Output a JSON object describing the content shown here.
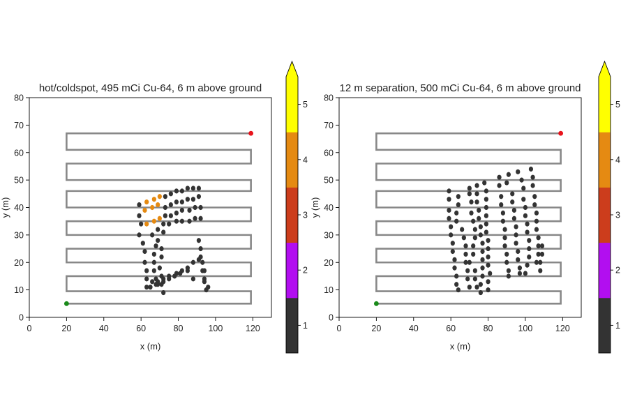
{
  "chart_data": [
    {
      "type": "scatter",
      "title": "hot/coldspot, 495 mCi Cu-64, 6 m above ground",
      "xlabel": "x (m)",
      "ylabel": "y (m)",
      "xlim": [
        0,
        130
      ],
      "ylim": [
        0,
        80
      ],
      "xticks": [
        "0",
        "20",
        "40",
        "60",
        "80",
        "100",
        "120"
      ],
      "yticks": [
        "0",
        "10",
        "20",
        "30",
        "40",
        "50",
        "60",
        "70",
        "80"
      ],
      "path": {
        "x_left": 20,
        "x_right": 119,
        "y_levels": [
          5,
          9.5,
          15,
          20,
          25,
          30,
          35,
          40,
          46,
          50,
          56,
          61,
          67
        ],
        "start": [
          20,
          5
        ],
        "end": [
          119,
          67
        ],
        "start_color": "#1a8a1a",
        "end_color": "#e8141c",
        "color": "#888888"
      },
      "point_groups": [
        {
          "level": 4,
          "color": "#e58a12",
          "x": [
            63,
            67,
            70,
            62,
            66,
            69,
            63,
            67,
            70
          ],
          "y": [
            42,
            43,
            44,
            39,
            40,
            41,
            34,
            35,
            36
          ]
        },
        {
          "level": 1,
          "color": "#333333",
          "x": [
            73,
            76,
            79,
            82,
            85,
            88,
            91,
            73,
            76,
            79,
            82,
            85,
            88,
            91,
            73,
            76,
            79,
            82,
            86,
            89,
            92,
            72,
            75,
            79,
            82,
            86,
            89,
            92,
            59,
            59,
            60,
            59,
            61,
            62,
            62,
            63,
            63,
            63,
            66,
            68,
            67,
            67,
            67,
            68,
            68,
            69,
            69,
            71,
            71,
            70,
            71,
            71,
            72,
            72,
            91,
            92,
            92,
            93,
            93,
            94,
            94,
            96,
            95,
            66,
            69,
            72,
            75,
            79,
            82,
            85,
            88,
            91,
            94,
            65,
            69,
            72,
            75,
            78,
            81,
            85,
            88
          ],
          "y": [
            44,
            45,
            46,
            46,
            47,
            47,
            47,
            40,
            41,
            42,
            42,
            43,
            43,
            44,
            37,
            37,
            38,
            39,
            39,
            40,
            40,
            34,
            34,
            35,
            35,
            35,
            36,
            36,
            41,
            37,
            34,
            30,
            27,
            24,
            20,
            17,
            14,
            11,
            30,
            26,
            23,
            20,
            17,
            14,
            12,
            32,
            28,
            25,
            22,
            18,
            15,
            12,
            9,
            31,
            28,
            25,
            22,
            20,
            17,
            14,
            13,
            11,
            10,
            13,
            13,
            14,
            15,
            16,
            17,
            18,
            20,
            21,
            17,
            11,
            12,
            13,
            14,
            15,
            16,
            17,
            14
          ]
        }
      ],
      "colorbar": {
        "levels": [
          "1",
          "2",
          "3",
          "4",
          "5"
        ],
        "colors": [
          "#333333",
          "#b20ef0",
          "#cc3d1c",
          "#e58a12",
          "#ffff00"
        ],
        "extend": "max"
      },
      "grid": false
    },
    {
      "type": "scatter",
      "title": "12 m separation, 500 mCi Cu-64, 6 m above ground",
      "xlabel": "x (m)",
      "ylabel": "y (m)",
      "xlim": [
        0,
        130
      ],
      "ylim": [
        0,
        80
      ],
      "xticks": [
        "0",
        "20",
        "40",
        "60",
        "80",
        "100",
        "120"
      ],
      "yticks": [
        "0",
        "10",
        "20",
        "30",
        "40",
        "50",
        "60",
        "70",
        "80"
      ],
      "path": {
        "x_left": 20,
        "x_right": 119,
        "y_levels": [
          5,
          9.5,
          15,
          20,
          25,
          30,
          35,
          40,
          46,
          50,
          56,
          61,
          67
        ],
        "start": [
          20,
          5
        ],
        "end": [
          119,
          67
        ],
        "start_color": "#1a8a1a",
        "end_color": "#e8141c",
        "color": "#888888"
      },
      "point_groups": [
        {
          "level": 1,
          "color": "#333333",
          "x": [
            59,
            59,
            59,
            59,
            60,
            60,
            61,
            61,
            62,
            62,
            63,
            63,
            64,
            64,
            64,
            63,
            63,
            66,
            67,
            68,
            68,
            68,
            69,
            69,
            70,
            70,
            70,
            71,
            71,
            72,
            73,
            73,
            72,
            72,
            70,
            73,
            73,
            74,
            74,
            74,
            74,
            75,
            75,
            76,
            76,
            77,
            77,
            77,
            77,
            77,
            76,
            76,
            78,
            79,
            79,
            79,
            79,
            79,
            79,
            80,
            80,
            80,
            80,
            81,
            80,
            80
          ],
          "y": [
            46,
            43,
            39,
            36,
            33,
            30,
            27,
            24,
            21,
            18,
            15,
            12,
            10,
            44,
            41,
            38,
            35,
            32,
            29,
            26,
            23,
            20,
            17,
            14,
            11,
            47,
            45,
            42,
            38,
            35,
            32,
            29,
            26,
            23,
            20,
            17,
            14,
            11,
            48,
            45,
            42,
            39,
            36,
            33,
            30,
            27,
            24,
            21,
            18,
            15,
            12,
            9,
            49,
            46,
            43,
            40,
            37,
            34,
            31,
            28,
            25,
            22,
            19,
            16,
            13,
            10
          ]
        },
        {
          "level": 1,
          "color": "#333333",
          "x": [
            86,
            86,
            87,
            87,
            88,
            88,
            89,
            89,
            89,
            90,
            90,
            91,
            91,
            91,
            90,
            93,
            93,
            94,
            94,
            95,
            95,
            95,
            96,
            96,
            97,
            97,
            96,
            98,
            99,
            99,
            100,
            100,
            101,
            101,
            102,
            102,
            102,
            101,
            100,
            103,
            104,
            104,
            105,
            105,
            106,
            106,
            106,
            107,
            107,
            107,
            106,
            108,
            108,
            109,
            109
          ],
          "y": [
            51,
            48,
            44,
            41,
            38,
            35,
            32,
            29,
            26,
            23,
            20,
            17,
            15,
            52,
            49,
            45,
            42,
            39,
            36,
            33,
            30,
            27,
            24,
            21,
            18,
            16,
            53,
            50,
            47,
            43,
            40,
            37,
            34,
            31,
            28,
            25,
            22,
            19,
            16,
            54,
            51,
            48,
            44,
            41,
            38,
            35,
            32,
            29,
            26,
            23,
            20,
            17,
            20,
            23,
            26
          ]
        }
      ],
      "colorbar": {
        "levels": [
          "1",
          "2",
          "3",
          "4",
          "5"
        ],
        "colors": [
          "#333333",
          "#b20ef0",
          "#cc3d1c",
          "#e58a12",
          "#ffff00"
        ],
        "extend": "max"
      },
      "grid": false
    }
  ]
}
